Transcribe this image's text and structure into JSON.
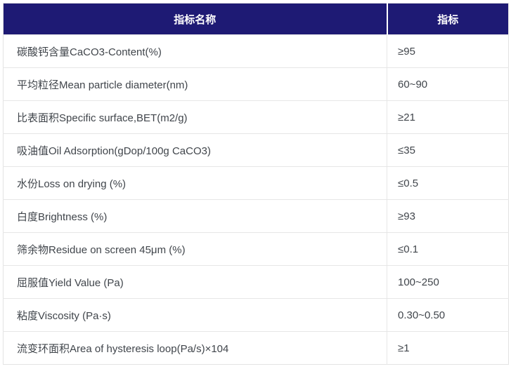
{
  "colors": {
    "header_bg": "#1e1a74",
    "header_text": "#ffffff",
    "body_text": "#40454b",
    "border": "#e6e6e6"
  },
  "table": {
    "headers": {
      "name": "指标名称",
      "value": "指标"
    },
    "rows": [
      {
        "name": "碳酸钙含量CaCO3-Content(%)",
        "value": "≥95"
      },
      {
        "name": "平均粒径Mean particle diameter(nm)",
        "value": "60~90"
      },
      {
        "name": "比表面积Specific surface,BET(m2/g)",
        "value": "≥21"
      },
      {
        "name": "吸油值Oil Adsorption(gDop/100g CaCO3)",
        "value": "≤35"
      },
      {
        "name": "水份Loss on drying (%)",
        "value": "≤0.5"
      },
      {
        "name": "白度Brightness (%)",
        "value": "≥93"
      },
      {
        "name": "筛余物Residue on screen 45μm (%)",
        "value": "≤0.1"
      },
      {
        "name": "屈服值Yield Value (Pa)",
        "value": "100~250"
      },
      {
        "name": "粘度Viscosity (Pa·s)",
        "value": "0.30~0.50"
      },
      {
        "name": "流变环面积Area of hysteresis loop(Pa/s)×104",
        "value": "≥1"
      }
    ]
  }
}
